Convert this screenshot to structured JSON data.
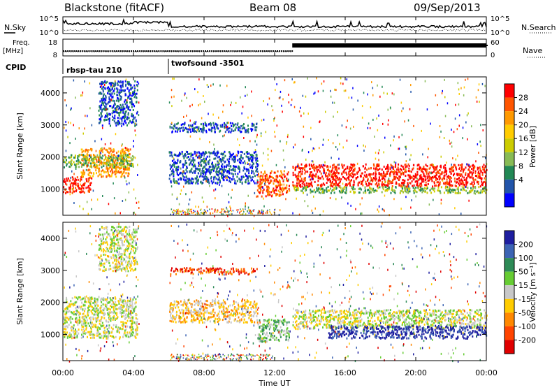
{
  "header": {
    "radar": "Blackstone (fitACF)",
    "beam": "Beam 08",
    "date": "09/Sep/2013"
  },
  "panels": {
    "nsky_label": "N.Sky",
    "nsearch_label": "N.Search",
    "nave_label": "Nave",
    "freq_label_1": "Freq.",
    "freq_label_2": "[MHz]",
    "cpid_label": "CPID",
    "noise_ticks": {
      "top": "10^5",
      "bottom": "10^0"
    },
    "freq_ticks": {
      "top": "18",
      "bottom": "8"
    },
    "nave_ticks": {
      "top": "60",
      "bottom": "0"
    }
  },
  "cpid_segments": [
    {
      "label": "rbsp-tau 210",
      "start_hour": 0
    },
    {
      "label": "twofsound -3501",
      "start_hour": 6
    }
  ],
  "power_colorbar": {
    "label": "Power [dB]",
    "ticks": [
      "28",
      "24",
      "20",
      "16",
      "12",
      "8",
      "4"
    ],
    "colors": [
      "#ff0000",
      "#ff5500",
      "#ff9900",
      "#ffcc00",
      "#cccc00",
      "#88bb55",
      "#228855",
      "#2255aa",
      "#0000ff"
    ]
  },
  "velocity_colorbar": {
    "label": "Velocity [m s⁻¹]",
    "ticks": [
      "200",
      "100",
      "50",
      "15",
      "-15",
      "-50",
      "-100",
      "-200"
    ],
    "colors": [
      "#1e1ea0",
      "#3c64b4",
      "#2e8b57",
      "#66cc33",
      "#c8c8c8",
      "#ffcc00",
      "#ff8800",
      "#ff4400",
      "#e00000"
    ]
  },
  "chart_data": {
    "type": "heatmap",
    "xlabel": "Time UT",
    "x_ticks": [
      "00:00",
      "04:00",
      "08:00",
      "12:00",
      "16:00",
      "20:00",
      "00:00"
    ],
    "x_range_hours": [
      0,
      24
    ],
    "ylabel": "Slant Range [km]",
    "y_ticks": [
      "4000",
      "3000",
      "2000",
      "1000"
    ],
    "y_range_km": [
      180,
      4500
    ],
    "power_bands": [
      {
        "t0": 0.0,
        "t1": 1.6,
        "r0": 900,
        "r1": 1400,
        "level": 0
      },
      {
        "t0": 1.0,
        "t1": 3.8,
        "r0": 1400,
        "r1": 2300,
        "level": 2
      },
      {
        "t0": 0.0,
        "t1": 4.0,
        "r0": 1700,
        "r1": 2100,
        "level": 5
      },
      {
        "t0": 2.0,
        "t1": 4.2,
        "r0": 3000,
        "r1": 4400,
        "level": 7
      },
      {
        "t0": 6.0,
        "t1": 11.0,
        "r0": 1200,
        "r1": 2200,
        "level": 7
      },
      {
        "t0": 6.0,
        "t1": 11.0,
        "r0": 2800,
        "r1": 3100,
        "level": 7
      },
      {
        "t0": 11.0,
        "t1": 12.8,
        "r0": 800,
        "r1": 1600,
        "level": 1
      },
      {
        "t0": 13.0,
        "t1": 24.0,
        "r0": 1100,
        "r1": 1800,
        "level": 0
      },
      {
        "t0": 13.0,
        "t1": 24.0,
        "r0": 900,
        "r1": 1100,
        "level": 5
      }
    ],
    "velocity_bands": [
      {
        "t0": 0.0,
        "t1": 4.2,
        "r0": 900,
        "r1": 2200,
        "level": 4
      },
      {
        "t0": 2.0,
        "t1": 4.2,
        "r0": 3000,
        "r1": 4400,
        "level": 4
      },
      {
        "t0": 6.0,
        "t1": 11.0,
        "r0": 1400,
        "r1": 2100,
        "level": 5
      },
      {
        "t0": 6.0,
        "t1": 11.0,
        "r0": 2900,
        "r1": 3100,
        "level": 7
      },
      {
        "t0": 11.0,
        "t1": 12.8,
        "r0": 800,
        "r1": 1500,
        "level": 3
      },
      {
        "t0": 13.0,
        "t1": 24.0,
        "r0": 1200,
        "r1": 1800,
        "level": 4
      },
      {
        "t0": 15.0,
        "t1": 24.0,
        "r0": 900,
        "r1": 1300,
        "level": 0
      }
    ]
  }
}
